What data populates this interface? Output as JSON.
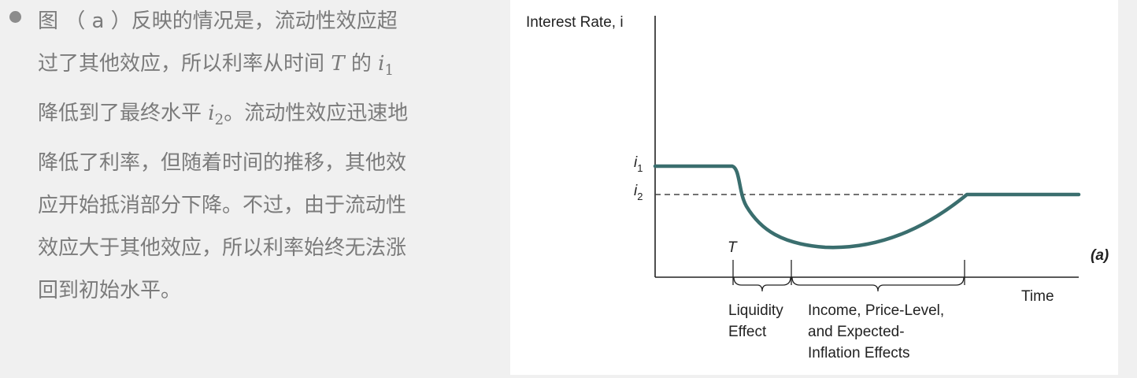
{
  "text_panel": {
    "lines": [
      "图 （ a ）反映的情况是，流动性效应超",
      "过了其他效应，所以利率从时间",
      "降低到了最终水平",
      "降低了利率，但随着时间的推移，其他效",
      "应开始抵消部分下降。不过，由于流动性",
      "效应大于其他效应，所以利率始终无法涨",
      "回到初始水平。"
    ],
    "line2_mid": "的",
    "line3_tail": "。流动性效应迅速地",
    "math_T": "T",
    "math_i": "i",
    "math_i1_sub": "1",
    "math_i2_sub": "2"
  },
  "chart_data": {
    "type": "line",
    "ylabel": "Interest Rate, i",
    "xlabel": "Time",
    "panel_label": "(a)",
    "y_ticks": [
      {
        "base": "i",
        "sub": "1"
      },
      {
        "base": "i",
        "sub": "2"
      }
    ],
    "x_tick": "T",
    "reference_line": "i2 (dashed)",
    "segments": [
      {
        "name": "Liquidity Effect",
        "lines": [
          "Liquidity",
          "Effect"
        ]
      },
      {
        "name": "Income, Price-Level, and Expected-Inflation Effects",
        "lines": [
          "Income, Price-Level,",
          "and Expected-",
          "Inflation Effects"
        ]
      }
    ],
    "series": [
      {
        "description": "interest rate path: at i1 until T, drops sharply below i2, then gradually rises back to i2"
      }
    ],
    "colors": {
      "line": "#3a6e6e",
      "axis": "#222222",
      "dashed": "#444444"
    }
  }
}
